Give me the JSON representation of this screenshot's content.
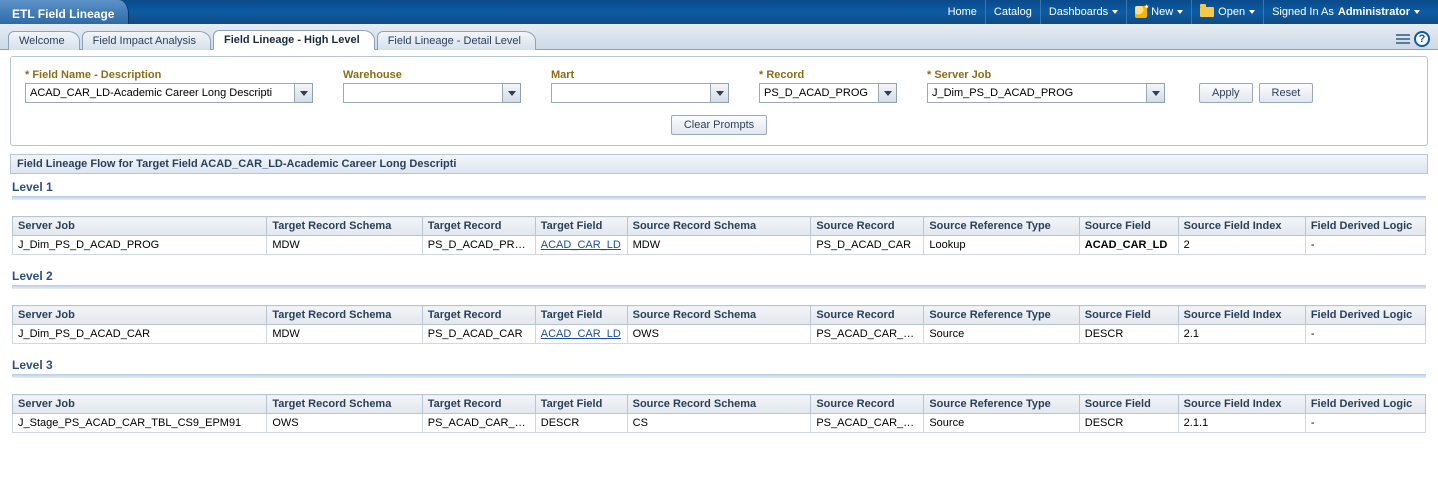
{
  "app_title": "ETL Field Lineage",
  "topnav": {
    "home": "Home",
    "catalog": "Catalog",
    "dashboards": "Dashboards",
    "new": "New",
    "open": "Open",
    "signed_in_as": "Signed In As",
    "user": "Administrator"
  },
  "tabs": {
    "welcome": "Welcome",
    "field_impact": "Field Impact Analysis",
    "high_level": "Field Lineage - High Level",
    "detail_level": "Field Lineage - Detail Level"
  },
  "prompts": {
    "field_name_label": "* Field Name - Description",
    "field_name_value": "ACAD_CAR_LD-Academic Career Long Descripti",
    "field_name_width": 270,
    "warehouse_label": "Warehouse",
    "warehouse_value": "",
    "warehouse_width": 160,
    "mart_label": "Mart",
    "mart_value": "",
    "mart_width": 160,
    "record_label": "* Record",
    "record_value": "PS_D_ACAD_PROG",
    "record_width": 120,
    "server_job_label": "* Server Job",
    "server_job_value": "J_Dim_PS_D_ACAD_PROG",
    "server_job_width": 220,
    "apply": "Apply",
    "reset": "Reset",
    "clear": "Clear Prompts"
  },
  "results_title": "Field Lineage Flow for Target Field ACAD_CAR_LD-Academic Career Long Descripti",
  "columns": [
    "Server Job",
    "Target Record Schema",
    "Target Record",
    "Target Field",
    "Source Record Schema",
    "Source Record",
    "Source Reference Type",
    "Source Field",
    "Source Field Index",
    "Field Derived Logic"
  ],
  "col_widths_pct": [
    18,
    11,
    8,
    6.5,
    13,
    8,
    11,
    7,
    9,
    8.5
  ],
  "levels": [
    {
      "name": "Level 1",
      "rows": [
        {
          "server_job": "J_Dim_PS_D_ACAD_PROG",
          "tgt_schema": "MDW",
          "tgt_record": "PS_D_ACAD_PROG",
          "tgt_field": "ACAD_CAR_LD",
          "tgt_field_link": true,
          "src_schema": "MDW",
          "src_record": "PS_D_ACAD_CAR",
          "ref_type": "Lookup",
          "src_field": "ACAD_CAR_LD",
          "src_field_bold": true,
          "src_index": "2",
          "derived": "-"
        }
      ]
    },
    {
      "name": "Level 2",
      "rows": [
        {
          "server_job": "J_Dim_PS_D_ACAD_CAR",
          "tgt_schema": "MDW",
          "tgt_record": "PS_D_ACAD_CAR",
          "tgt_field": "ACAD_CAR_LD",
          "tgt_field_link": true,
          "src_schema": "OWS",
          "src_record": "PS_ACAD_CAR_TBL",
          "ref_type": "Source",
          "src_field": "DESCR",
          "src_field_bold": false,
          "src_index": "2.1",
          "derived": "-"
        }
      ]
    },
    {
      "name": "Level 3",
      "rows": [
        {
          "server_job": "J_Stage_PS_ACAD_CAR_TBL_CS9_EPM91",
          "tgt_schema": "OWS",
          "tgt_record": "PS_ACAD_CAR_TBL",
          "tgt_field": "DESCR",
          "tgt_field_link": false,
          "src_schema": "CS",
          "src_record": "PS_ACAD_CAR_TBL",
          "ref_type": "Source",
          "src_field": "DESCR",
          "src_field_bold": false,
          "src_index": "2.1.1",
          "derived": "-"
        }
      ]
    }
  ]
}
